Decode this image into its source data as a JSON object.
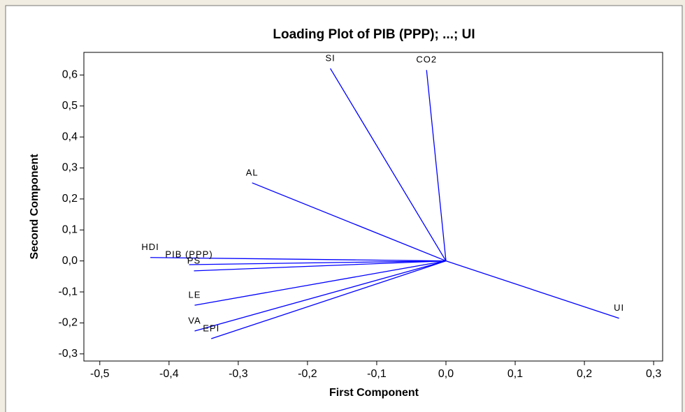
{
  "chart_data": {
    "type": "loading",
    "title": "Loading Plot of PIB (PPP); ...; UI",
    "x_label": "First Component",
    "y_label": "Second Component",
    "categories": [
      "SI",
      "CO2",
      "AL",
      "HDI",
      "PIB (PPP)",
      "PS",
      "LE",
      "VA",
      "EPI",
      "UI"
    ],
    "x": [
      -0.167,
      -0.028,
      -0.28,
      -0.427,
      -0.371,
      -0.364,
      -0.363,
      -0.363,
      -0.339,
      0.25
    ],
    "values": [
      0.621,
      0.616,
      0.252,
      0.011,
      -0.012,
      -0.032,
      -0.143,
      -0.226,
      -0.251,
      -0.185
    ],
    "color": "#0000ff",
    "xlim": [
      -0.523,
      0.313
    ],
    "ylim": [
      -0.323,
      0.673
    ],
    "xticks": [
      {
        "value": -0.5,
        "label": "-0,5"
      },
      {
        "value": -0.4,
        "label": "-0,4"
      },
      {
        "value": -0.3,
        "label": "-0,3"
      },
      {
        "value": -0.2,
        "label": "-0,2"
      },
      {
        "value": -0.1,
        "label": "-0,1"
      },
      {
        "value": 0.0,
        "label": "0,0"
      },
      {
        "value": 0.1,
        "label": "0,1"
      },
      {
        "value": 0.2,
        "label": "0,2"
      },
      {
        "value": 0.3,
        "label": "0,3"
      }
    ],
    "yticks": [
      {
        "value": -0.3,
        "label": "-0,3"
      },
      {
        "value": -0.2,
        "label": "-0,2"
      },
      {
        "value": -0.1,
        "label": "-0,1"
      },
      {
        "value": 0.0,
        "label": "0,0"
      },
      {
        "value": 0.1,
        "label": "0,1"
      },
      {
        "value": 0.2,
        "label": "0,2"
      },
      {
        "value": 0.3,
        "label": "0,3"
      },
      {
        "value": 0.4,
        "label": "0,4"
      },
      {
        "value": 0.5,
        "label": "0,5"
      },
      {
        "value": 0.6,
        "label": "0,6"
      }
    ]
  }
}
